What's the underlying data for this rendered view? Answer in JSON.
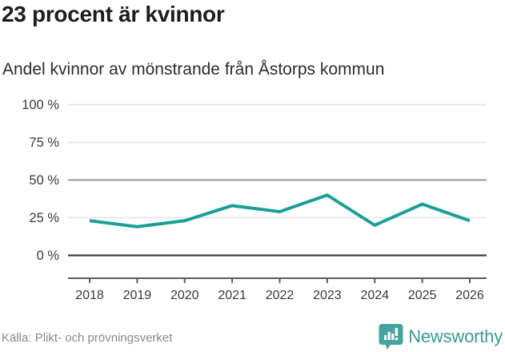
{
  "header": {
    "title": "23 procent är kvinnor",
    "subtitle": "Andel kvinnor av mönstrande från Åstorps kommun"
  },
  "chart_data": {
    "type": "line",
    "categories": [
      "2018",
      "2019",
      "2020",
      "2021",
      "2022",
      "2023",
      "2024",
      "2025",
      "2026"
    ],
    "series": [
      {
        "name": "Andel kvinnor av mönstrande",
        "values": [
          23,
          19,
          23,
          33,
          29,
          40,
          20,
          34,
          23
        ]
      }
    ],
    "title": "23 procent är kvinnor",
    "subtitle": "Andel kvinnor av mönstrande från Åstorps kommun",
    "xlabel": "",
    "ylabel": "",
    "ylim": [
      0,
      100
    ],
    "yticks": [
      0,
      25,
      50,
      75,
      100
    ],
    "ytick_labels": [
      "0 %",
      "25 %",
      "50 %",
      "75 %",
      "100 %"
    ],
    "grid": true,
    "legend": "none",
    "unit": "%"
  },
  "colors": {
    "line": "#1aa096",
    "grid_light": "#e4e4e4",
    "grid_mid": "#8a8a8a",
    "grid_dark": "#3d3d3d",
    "axis": "#5c5c5c",
    "tick_text": "#3a3a3a",
    "brand_teal": "#3a9a93",
    "logo_fill": "#44a5a0"
  },
  "footer": {
    "source": "Källa: Plikt- och prövningsverket",
    "brand": "Newsworthy"
  }
}
